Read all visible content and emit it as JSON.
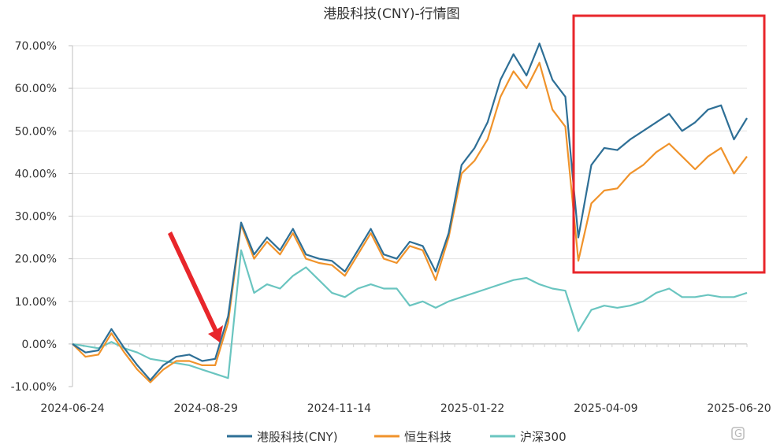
{
  "chart_data": {
    "type": "line",
    "title": "港股科技(CNY)-行情图",
    "x_tick_labels": [
      "2024-06-24",
      "2024-08-29",
      "2024-11-14",
      "2025-01-22",
      "2025-04-09",
      "2025-06-20"
    ],
    "y_tick_labels": [
      "-10.00%",
      "0.00%",
      "10.00%",
      "20.00%",
      "30.00%",
      "40.00%",
      "50.00%",
      "60.00%",
      "70.00%"
    ],
    "ylim": [
      -10,
      70
    ],
    "grid": "horizontal",
    "legend_position": "bottom",
    "x": [
      0,
      5,
      10,
      15,
      20,
      25,
      30,
      35,
      40,
      45,
      50,
      55,
      60,
      65,
      70,
      75,
      80,
      85,
      90,
      95,
      100,
      105,
      110,
      115,
      120,
      125,
      130,
      135,
      140,
      145,
      150,
      155,
      160,
      165,
      170,
      175,
      180,
      185,
      190,
      195,
      200,
      205,
      210,
      215,
      220,
      225,
      230,
      235,
      240,
      245,
      250,
      255,
      260
    ],
    "series": [
      {
        "name": "港股科技(CNY)",
        "color": "#2e6f96",
        "values": [
          0,
          -2,
          -1.5,
          3.5,
          -1,
          -5,
          -8.5,
          -5,
          -3,
          -2.5,
          -4,
          -3.5,
          6.5,
          28.5,
          21,
          25,
          22,
          27,
          21,
          20,
          19.5,
          17,
          22,
          27,
          21,
          20,
          24,
          23,
          17,
          26,
          42,
          46,
          52,
          62,
          68,
          63,
          70.5,
          62,
          58,
          25,
          42,
          46,
          45.5,
          48,
          50,
          52,
          54,
          50,
          52,
          55,
          56,
          48,
          53
        ]
      },
      {
        "name": "恒生科技",
        "color": "#f0932b",
        "values": [
          0,
          -3,
          -2.5,
          2.5,
          -2,
          -6,
          -9,
          -6,
          -4,
          -4,
          -5,
          -5,
          5,
          28,
          20,
          24,
          21,
          26,
          20,
          19,
          18.5,
          16,
          21,
          26,
          20,
          19,
          23,
          22,
          15,
          25,
          40,
          43,
          48,
          58,
          64,
          60,
          66,
          55,
          51,
          19.5,
          33,
          36,
          36.5,
          40,
          42,
          45,
          47,
          44,
          41,
          44,
          46,
          40,
          44
        ]
      },
      {
        "name": "沪深300",
        "color": "#6ac5c0",
        "values": [
          0,
          -0.5,
          -1,
          0.5,
          -1,
          -2,
          -3.5,
          -4,
          -4.5,
          -5,
          -6,
          -7,
          -8,
          22,
          12,
          14,
          13,
          16,
          18,
          15,
          12,
          11,
          13,
          14,
          13,
          13,
          9,
          10,
          8.5,
          10,
          11,
          12,
          13,
          14,
          15,
          15.5,
          14,
          13,
          12.5,
          3,
          8,
          9,
          8.5,
          9,
          10,
          12,
          13,
          11,
          11,
          11.5,
          11,
          11,
          12
        ]
      }
    ]
  }
}
